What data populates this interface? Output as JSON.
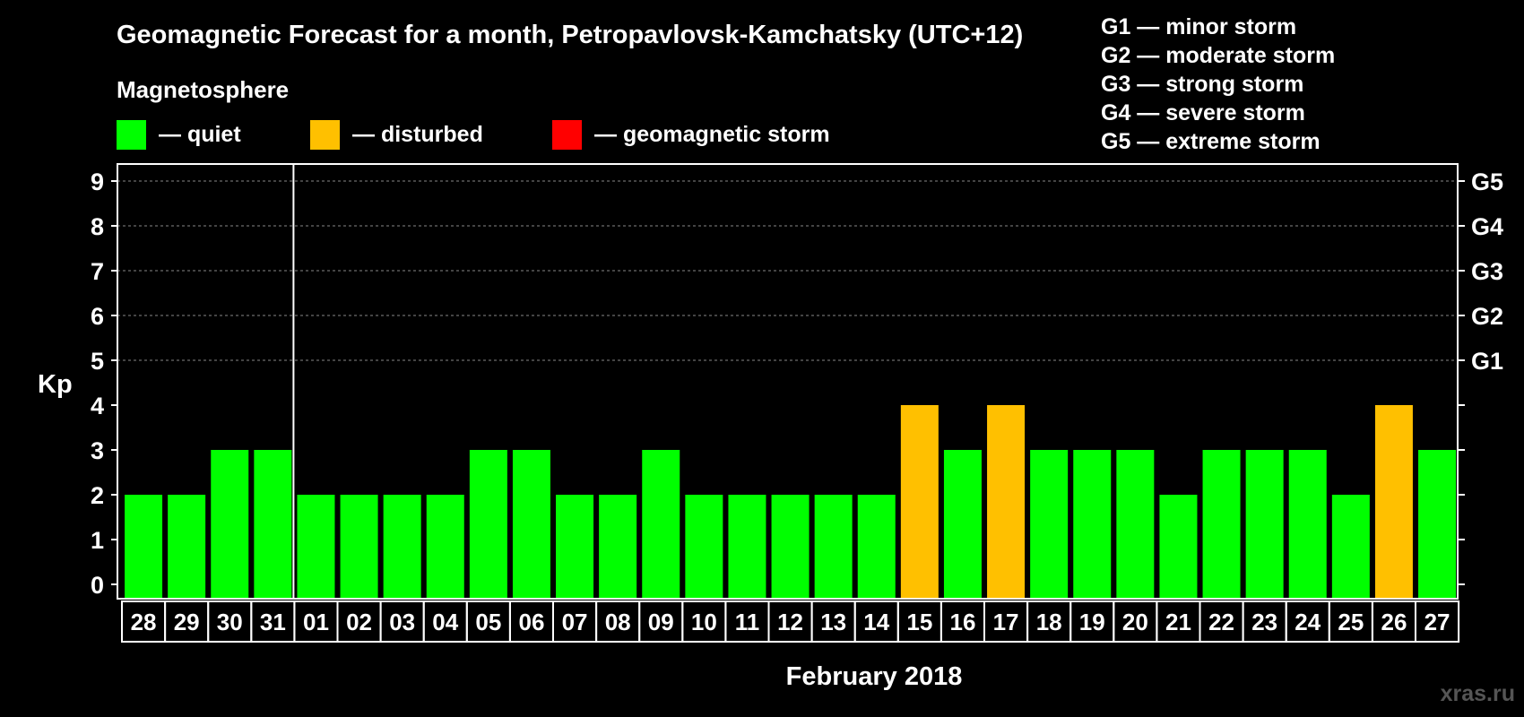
{
  "chart_data": {
    "type": "bar",
    "title": "Geomagnetic Forecast for a month, Petropavlovsk-Kamchatsky (UTC+12)",
    "legend_title": "Magnetosphere",
    "legend": [
      {
        "label": "— quiet",
        "color": "#00ff00"
      },
      {
        "label": "— disturbed",
        "color": "#ffc000"
      },
      {
        "label": "— geomagnetic storm",
        "color": "#ff0000"
      }
    ],
    "storm_scale": [
      "G1 — minor storm",
      "G2 — moderate storm",
      "G3 — strong storm",
      "G4 — severe storm",
      "G5 — extreme storm"
    ],
    "ylabel": "Kp",
    "xlabel": "February 2018",
    "ylim": [
      0,
      9
    ],
    "yticks": [
      "0",
      "1",
      "2",
      "3",
      "4",
      "5",
      "6",
      "7",
      "8",
      "9"
    ],
    "right_ticks": [
      {
        "kp": 5,
        "label": "G1"
      },
      {
        "kp": 6,
        "label": "G2"
      },
      {
        "kp": 7,
        "label": "G3"
      },
      {
        "kp": 8,
        "label": "G4"
      },
      {
        "kp": 9,
        "label": "G5"
      }
    ],
    "grid": "dashed at Kp 5-9",
    "month_divider_after": "31",
    "categories": [
      "28",
      "29",
      "30",
      "31",
      "01",
      "02",
      "03",
      "04",
      "05",
      "06",
      "07",
      "08",
      "09",
      "10",
      "11",
      "12",
      "13",
      "14",
      "15",
      "16",
      "17",
      "18",
      "19",
      "20",
      "21",
      "22",
      "23",
      "24",
      "25",
      "26",
      "27"
    ],
    "values": [
      2,
      2,
      3,
      3,
      2,
      2,
      2,
      2,
      3,
      3,
      2,
      2,
      3,
      2,
      2,
      2,
      2,
      2,
      4,
      3,
      4,
      3,
      3,
      3,
      2,
      3,
      3,
      3,
      2,
      4,
      3
    ],
    "colors": {
      "quiet": "#00ff00",
      "disturbed": "#ffc000",
      "storm": "#ff0000"
    }
  },
  "watermark": "xras.ru"
}
